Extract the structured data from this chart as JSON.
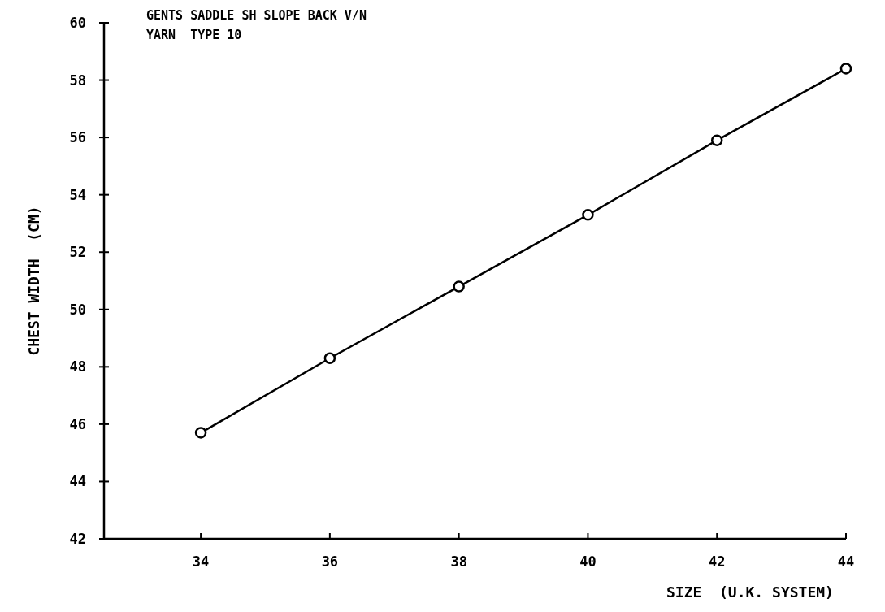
{
  "chart_data": {
    "type": "line",
    "title": "GENTS SADDLE SH SLOPE BACK V/N",
    "subtitle": "YARN  TYPE 10",
    "xlabel": "SIZE  (U.K. SYSTEM)",
    "ylabel": "CHEST WIDTH  (CM)",
    "x": [
      34,
      36,
      38,
      40,
      42,
      44
    ],
    "series": [
      {
        "color": "#000000",
        "values": [
          45.7,
          48.3,
          50.8,
          53.3,
          55.9,
          58.4
        ]
      }
    ],
    "xlim": [
      32.5,
      44
    ],
    "xticks": [
      34,
      36,
      38,
      40,
      42,
      44
    ],
    "ylim": [
      42,
      60
    ],
    "yticks": [
      42,
      44,
      46,
      48,
      50,
      52,
      54,
      56,
      58,
      60
    ],
    "marker": "circle",
    "line_style": "solid"
  }
}
